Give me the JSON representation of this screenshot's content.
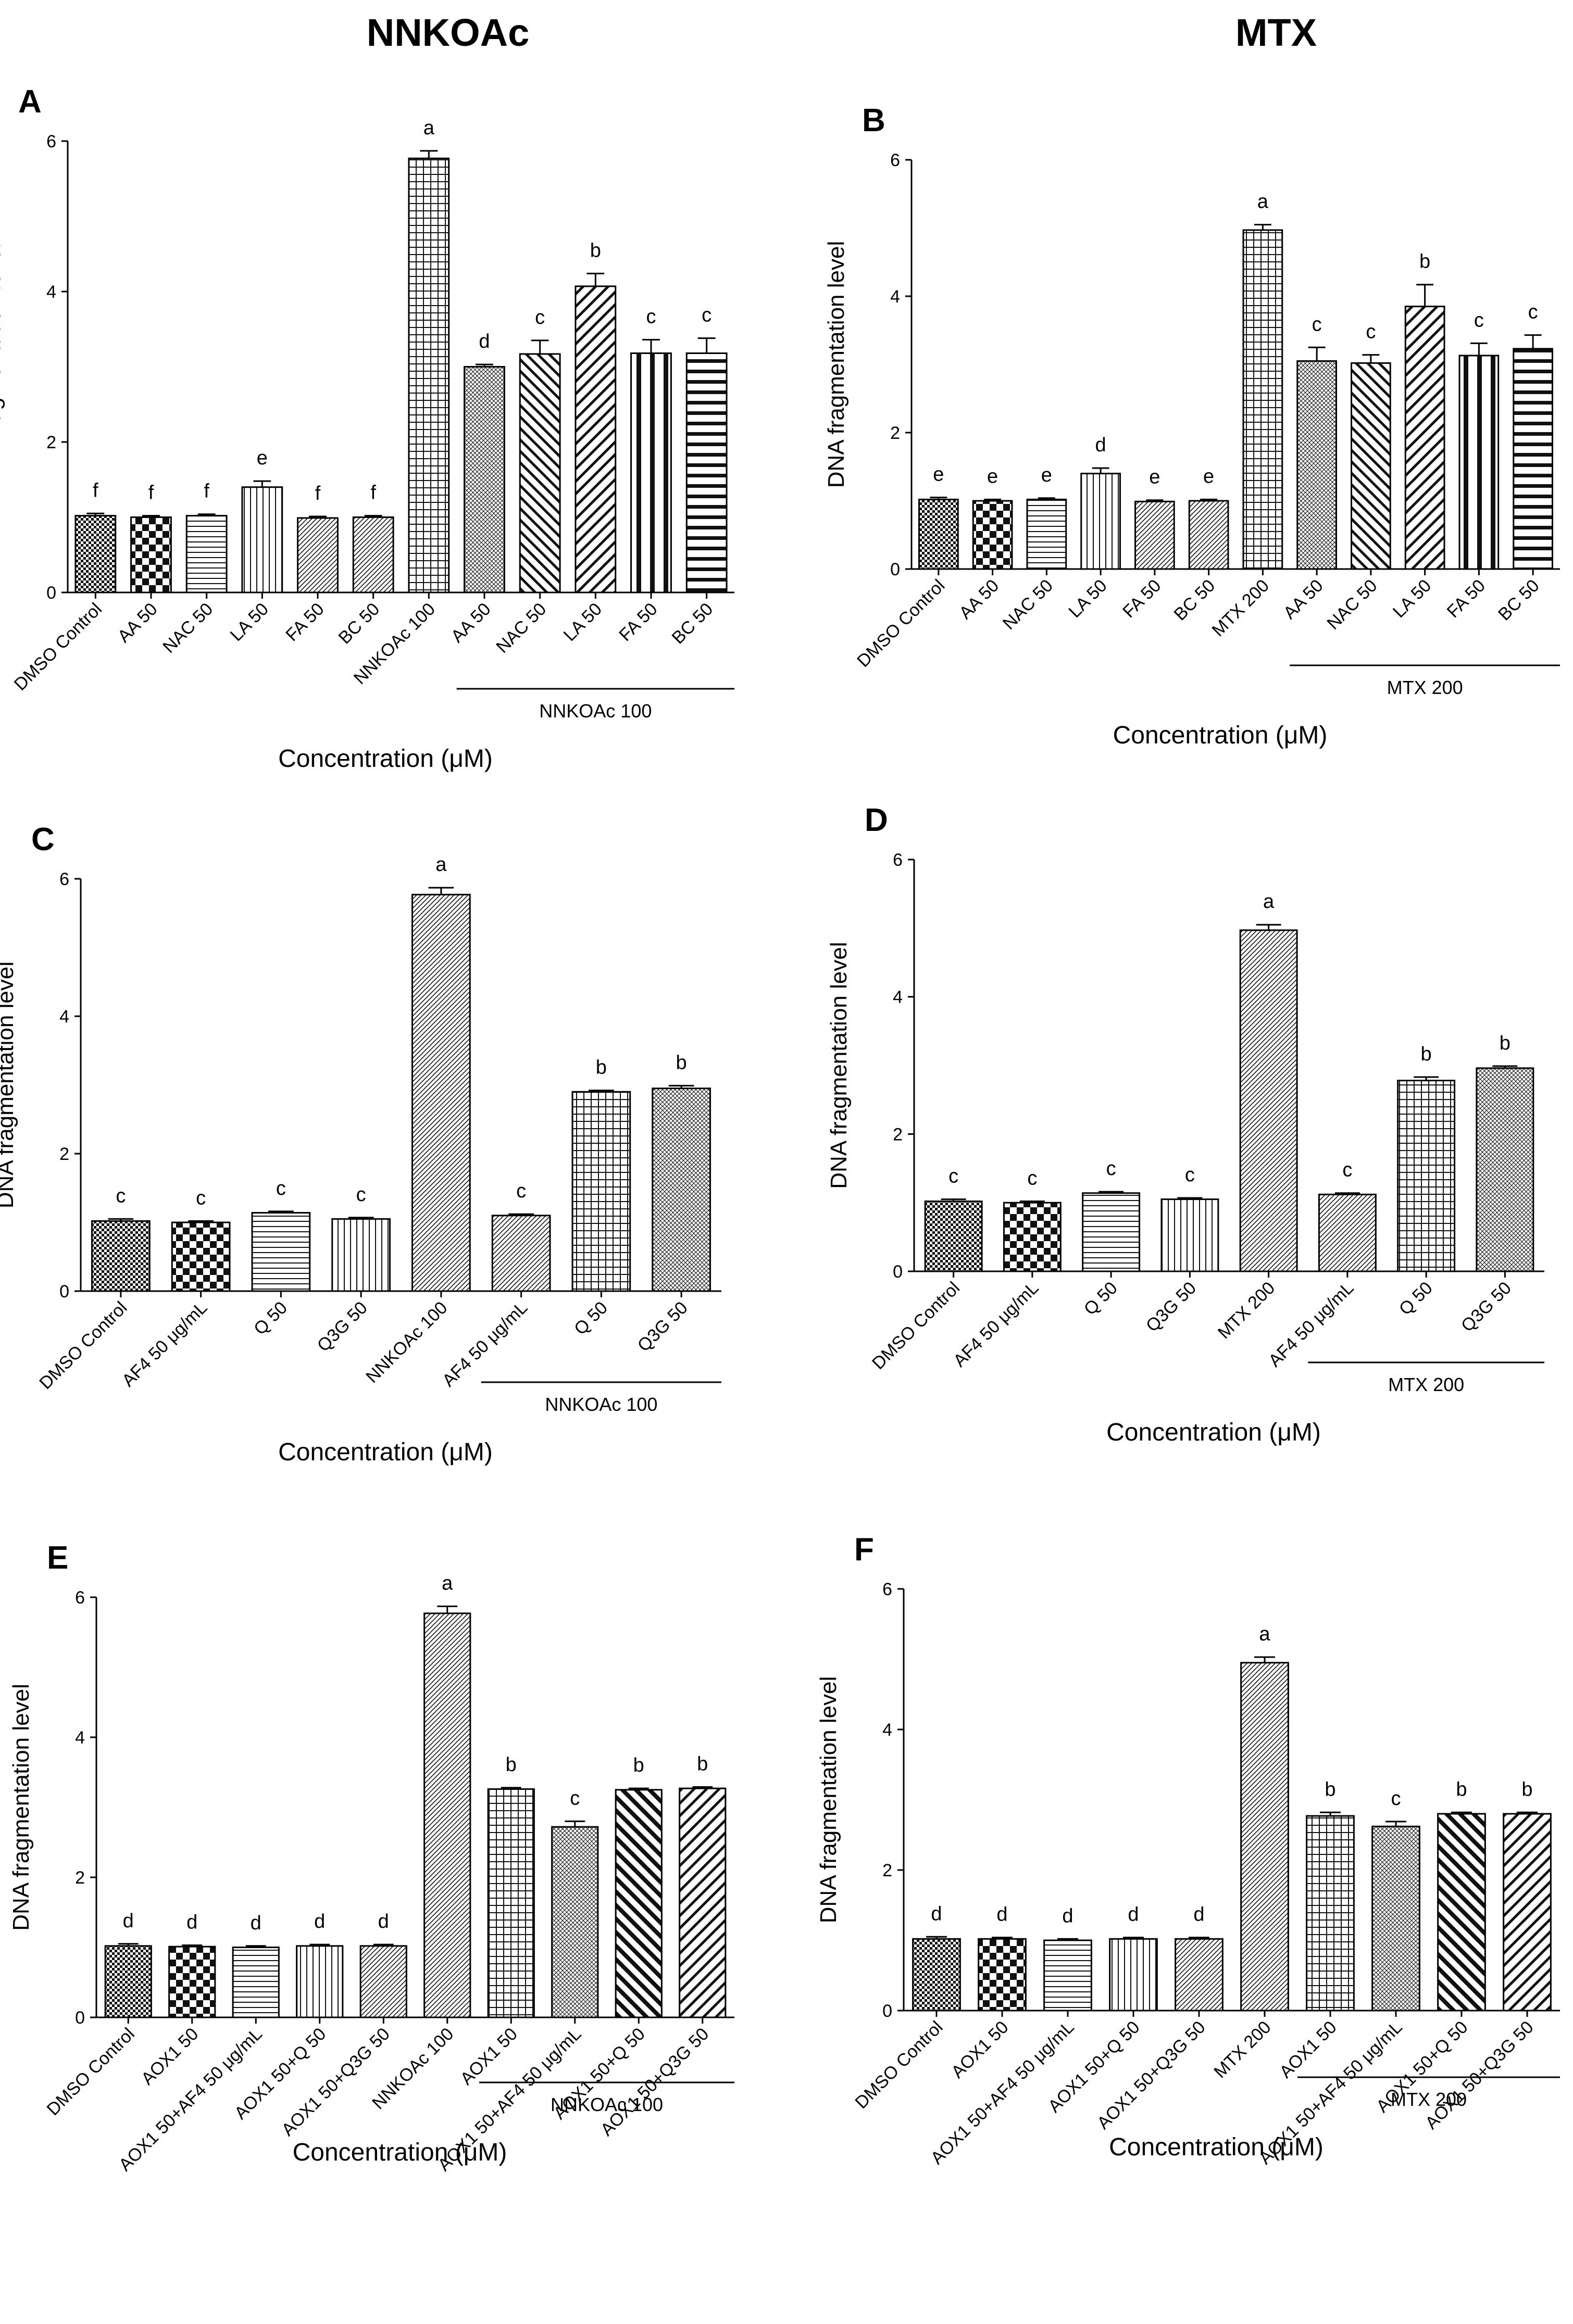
{
  "column_titles": [
    "NNKOAc",
    "MTX"
  ],
  "chart_data": [
    {
      "panel": "A",
      "type": "bar",
      "column": "NNKOAc",
      "ylabel": "DNA fragmentation level",
      "xlabel": "Concentration (μM)",
      "ylim": [
        0,
        6
      ],
      "yticks": [
        0,
        2,
        4,
        6
      ],
      "categories": [
        "DMSO Control",
        "AA 50",
        "NAC 50",
        "LA 50",
        "FA 50",
        "BC 50",
        "NNKOAc 100",
        "AA 50",
        "NAC 50",
        "LA 50",
        "FA 50",
        "BC 50"
      ],
      "values": [
        1.02,
        1.0,
        1.02,
        1.4,
        0.99,
        1.0,
        5.77,
        3.0,
        3.17,
        4.07,
        3.18,
        3.18
      ],
      "errors": [
        0.03,
        0.02,
        0.02,
        0.08,
        0.02,
        0.02,
        0.1,
        0.03,
        0.18,
        0.17,
        0.18,
        0.2
      ],
      "letters": [
        "f",
        "f",
        "f",
        "e",
        "f",
        "f",
        "a",
        "d",
        "c",
        "b",
        "c",
        "c"
      ],
      "patterns": [
        "dense-check",
        "big-check",
        "horizontal",
        "vertical",
        "diagonal-r",
        "diagonal-r",
        "grid",
        "fine-cross",
        "diagonal-l",
        "diagonal-r-bold",
        "vertical-bold",
        "horizontal-bold"
      ],
      "group_label": "NNKOAc 100",
      "group_span": [
        7,
        11
      ]
    },
    {
      "panel": "B",
      "type": "bar",
      "column": "MTX",
      "ylabel": "DNA fragmentation level",
      "xlabel": "Concentration (μM)",
      "ylim": [
        0,
        6
      ],
      "yticks": [
        0,
        2,
        4,
        6
      ],
      "categories": [
        "DMSO Control",
        "AA 50",
        "NAC 50",
        "LA 50",
        "FA 50",
        "BC 50",
        "MTX 200",
        "AA 50",
        "NAC 50",
        "LA 50",
        "FA 50",
        "BC 50"
      ],
      "values": [
        1.02,
        1.0,
        1.02,
        1.4,
        0.99,
        1.0,
        4.97,
        3.05,
        3.02,
        3.85,
        3.13,
        3.23
      ],
      "errors": [
        0.03,
        0.02,
        0.02,
        0.08,
        0.02,
        0.02,
        0.08,
        0.2,
        0.12,
        0.32,
        0.18,
        0.2
      ],
      "letters": [
        "e",
        "e",
        "e",
        "d",
        "e",
        "e",
        "a",
        "c",
        "c",
        "b",
        "c",
        "c"
      ],
      "patterns": [
        "dense-check",
        "big-check",
        "horizontal",
        "vertical",
        "diagonal-r",
        "diagonal-r",
        "grid",
        "fine-cross",
        "diagonal-l",
        "diagonal-r-bold",
        "vertical-bold",
        "horizontal-bold"
      ],
      "group_label": "MTX 200",
      "group_span": [
        7,
        11
      ]
    },
    {
      "panel": "C",
      "type": "bar",
      "column": "NNKOAc",
      "ylabel": "DNA fragmentation level",
      "xlabel": "Concentration (μM)",
      "ylim": [
        0,
        6
      ],
      "yticks": [
        0,
        2,
        4,
        6
      ],
      "categories": [
        "DMSO Control",
        "AF4 50 μg/mL",
        "Q 50",
        "Q3G 50",
        "NNKOAc 100",
        "AF4 50 μg/mL",
        "Q 50",
        "Q3G 50"
      ],
      "values": [
        1.02,
        1.0,
        1.14,
        1.05,
        5.77,
        1.1,
        2.9,
        2.95
      ],
      "errors": [
        0.03,
        0.02,
        0.02,
        0.02,
        0.1,
        0.02,
        0.02,
        0.04
      ],
      "letters": [
        "c",
        "c",
        "c",
        "c",
        "a",
        "c",
        "b",
        "b"
      ],
      "patterns": [
        "dense-check",
        "big-check",
        "horizontal",
        "vertical",
        "diagonal-r",
        "diagonal-r",
        "grid",
        "fine-cross"
      ],
      "group_label": "NNKOAc 100",
      "group_span": [
        5,
        7
      ]
    },
    {
      "panel": "D",
      "type": "bar",
      "column": "MTX",
      "ylabel": "DNA fragmentation level",
      "xlabel": "Concentration (μM)",
      "ylim": [
        0,
        6
      ],
      "yticks": [
        0,
        2,
        4,
        6
      ],
      "categories": [
        "DMSO Control",
        "AF4 50 μg/mL",
        "Q 50",
        "Q3G 50",
        "MTX 200",
        "AF4 50 μg/mL",
        "Q 50",
        "Q3G 50"
      ],
      "values": [
        1.02,
        1.0,
        1.14,
        1.05,
        4.97,
        1.12,
        2.78,
        2.96
      ],
      "errors": [
        0.03,
        0.02,
        0.02,
        0.02,
        0.08,
        0.02,
        0.05,
        0.03
      ],
      "letters": [
        "c",
        "c",
        "c",
        "c",
        "a",
        "c",
        "b",
        "b"
      ],
      "patterns": [
        "dense-check",
        "big-check",
        "horizontal",
        "vertical",
        "diagonal-r",
        "diagonal-r",
        "grid",
        "fine-cross"
      ],
      "group_label": "MTX 200",
      "group_span": [
        5,
        7
      ]
    },
    {
      "panel": "E",
      "type": "bar",
      "column": "NNKOAc",
      "ylabel": "DNA fragmentation level",
      "xlabel": "Concentration (μM)",
      "ylim": [
        0,
        6
      ],
      "yticks": [
        0,
        2,
        4,
        6
      ],
      "categories": [
        "DMSO Control",
        "AOX1 50",
        "AOX1 50+AF4 50  μg/mL",
        "AOX1 50+Q 50",
        "AOX1 50+Q3G 50",
        "NNKOAc 100",
        "AOX1 50",
        "AOX1 50+AF4 50  μg/mL",
        "AOX1 50+Q 50",
        "AOX1 50+Q3G 50"
      ],
      "values": [
        1.02,
        1.01,
        1.0,
        1.02,
        1.02,
        5.77,
        3.26,
        2.72,
        3.25,
        3.27
      ],
      "errors": [
        0.03,
        0.02,
        0.02,
        0.02,
        0.02,
        0.1,
        0.02,
        0.08,
        0.02,
        0.02
      ],
      "letters": [
        "d",
        "d",
        "d",
        "d",
        "d",
        "a",
        "b",
        "c",
        "b",
        "b"
      ],
      "patterns": [
        "dense-check",
        "big-check",
        "horizontal",
        "vertical",
        "diagonal-r",
        "diagonal-r",
        "grid",
        "fine-cross",
        "diagonal-l-bold",
        "diagonal-r-bold"
      ],
      "group_label": "NNKOAc 100",
      "group_span": [
        6,
        9
      ]
    },
    {
      "panel": "F",
      "type": "bar",
      "column": "MTX",
      "ylabel": "DNA fragmentation level",
      "xlabel": "Concentration (μM)",
      "ylim": [
        0,
        6
      ],
      "yticks": [
        0,
        2,
        4,
        6
      ],
      "categories": [
        "DMSO Control",
        "AOX1 50",
        "AOX1 50+AF4 50 μg/mL",
        "AOX1 50+Q 50",
        "AOX1 50+Q3G 50",
        "MTX 200",
        "AOX1 50",
        "AOX1 50+AF4 50 μg/mL",
        "AOX1 50+Q 50",
        "AOX1 50+Q3G 50"
      ],
      "values": [
        1.02,
        1.02,
        1.0,
        1.02,
        1.02,
        4.95,
        2.77,
        2.62,
        2.8,
        2.8
      ],
      "errors": [
        0.03,
        0.02,
        0.02,
        0.02,
        0.02,
        0.08,
        0.05,
        0.07,
        0.02,
        0.02
      ],
      "letters": [
        "d",
        "d",
        "d",
        "d",
        "d",
        "a",
        "b",
        "c",
        "b",
        "b"
      ],
      "patterns": [
        "dense-check",
        "big-check",
        "horizontal",
        "vertical",
        "diagonal-r",
        "diagonal-r",
        "grid",
        "fine-cross",
        "diagonal-l-bold",
        "diagonal-r-bold"
      ],
      "group_label": "MTX 200",
      "group_span": [
        6,
        9
      ]
    }
  ]
}
